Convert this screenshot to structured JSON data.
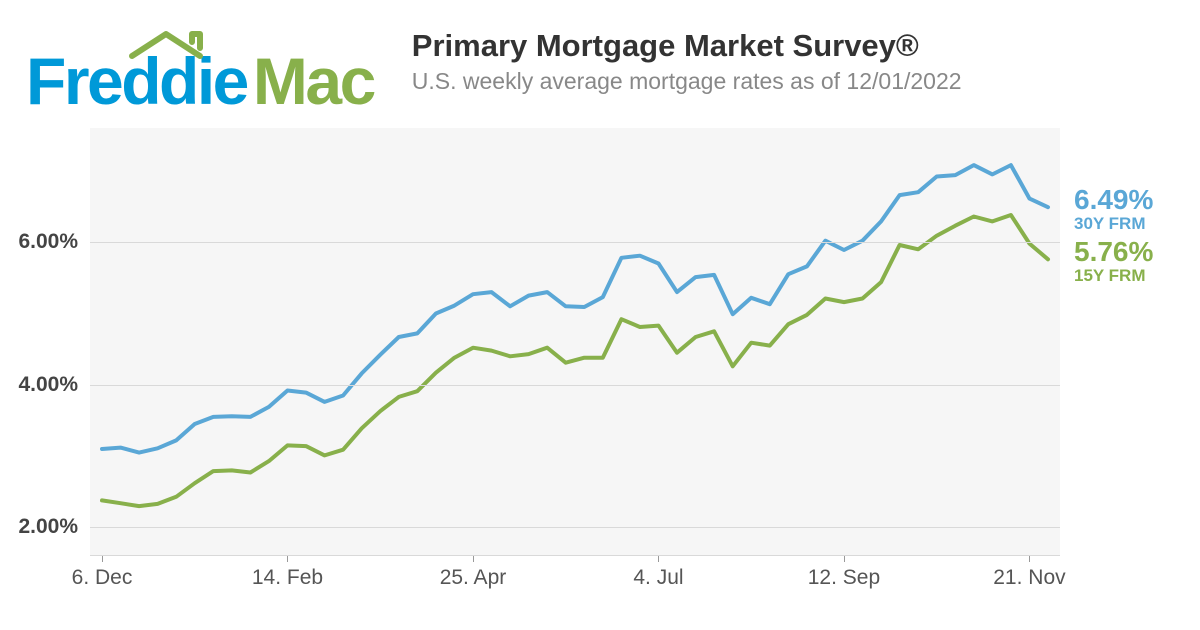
{
  "brand": {
    "word1": "Freddie",
    "word2": "Mac",
    "color1": "#0099d8",
    "color2": "#88b04b",
    "roof_color": "#88b04b"
  },
  "title": "Primary Mortgage Market Survey®",
  "subtitle": "U.S. weekly average mortgage rates as of 12/01/2022",
  "chart": {
    "type": "line",
    "background_color": "#f6f6f6",
    "grid_color": "#d9d9d9",
    "line_width": 4,
    "y_axis": {
      "min": 1.6,
      "max": 7.6,
      "ticks": [
        2.0,
        4.0,
        6.0
      ],
      "tick_labels": [
        "2.00%",
        "4.00%",
        "6.00%"
      ],
      "label_color": "#444444",
      "label_fontsize": 21
    },
    "x_axis": {
      "count": 52,
      "ticks": [
        {
          "index": 0,
          "label": "6. Dec"
        },
        {
          "index": 10,
          "label": "14. Feb"
        },
        {
          "index": 20,
          "label": "25. Apr"
        },
        {
          "index": 30,
          "label": "4. Jul"
        },
        {
          "index": 40,
          "label": "12. Sep"
        },
        {
          "index": 50,
          "label": "21. Nov"
        }
      ],
      "label_color": "#555555",
      "label_fontsize": 21
    },
    "series": [
      {
        "id": "30y",
        "name": "30Y FRM",
        "color": "#5aa7d6",
        "end_value_label": "6.49%",
        "values": [
          3.1,
          3.12,
          3.05,
          3.11,
          3.22,
          3.45,
          3.55,
          3.56,
          3.55,
          3.69,
          3.92,
          3.89,
          3.76,
          3.85,
          4.16,
          4.42,
          4.67,
          4.72,
          5.0,
          5.11,
          5.27,
          5.3,
          5.1,
          5.25,
          5.3,
          5.1,
          5.09,
          5.23,
          5.78,
          5.81,
          5.7,
          5.3,
          5.51,
          5.54,
          4.99,
          5.22,
          5.13,
          5.55,
          5.66,
          6.02,
          5.89,
          6.02,
          6.29,
          6.66,
          6.7,
          6.92,
          6.94,
          7.08,
          6.95,
          7.08,
          6.61,
          6.49
        ]
      },
      {
        "id": "15y",
        "name": "15Y FRM",
        "color": "#88b04b",
        "end_value_label": "5.76%",
        "values": [
          2.38,
          2.34,
          2.3,
          2.33,
          2.43,
          2.62,
          2.79,
          2.8,
          2.77,
          2.93,
          3.15,
          3.14,
          3.01,
          3.09,
          3.39,
          3.63,
          3.83,
          3.91,
          4.17,
          4.38,
          4.52,
          4.48,
          4.4,
          4.43,
          4.52,
          4.31,
          4.38,
          4.38,
          4.92,
          4.81,
          4.83,
          4.45,
          4.67,
          4.75,
          4.26,
          4.59,
          4.55,
          4.85,
          4.98,
          5.21,
          5.16,
          5.21,
          5.44,
          5.96,
          5.9,
          6.09,
          6.23,
          6.36,
          6.29,
          6.38,
          5.98,
          5.76
        ]
      }
    ]
  }
}
